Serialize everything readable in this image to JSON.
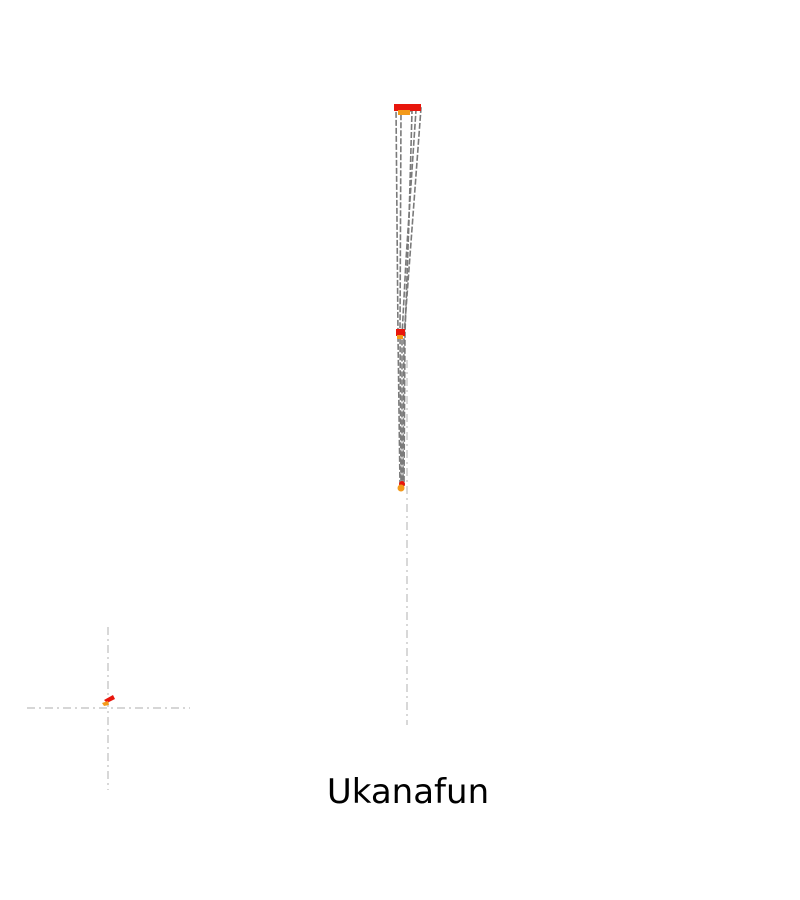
{
  "map": {
    "place_name": "Ukanafun"
  },
  "colors": {
    "background": "#ffffff",
    "boundary_outline": "#7a7a7a",
    "guide_line": "#c8c8c8",
    "marker_primary": "#e8160c",
    "marker_secondary": "#f39a1a"
  }
}
